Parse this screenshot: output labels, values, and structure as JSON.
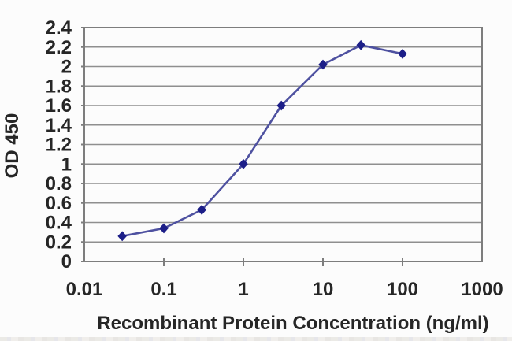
{
  "figure": {
    "background": "#fcfcfc"
  },
  "chart_data": {
    "type": "line",
    "title": "",
    "xlabel": "Recombinant Protein Concentration (ng/ml)",
    "ylabel": "OD 450",
    "x_scale": "log",
    "xlim": [
      0.01,
      1000
    ],
    "ylim": [
      0,
      2.4
    ],
    "grid": "horizontal",
    "legend": "none",
    "marker": "diamond",
    "x": [
      0.03,
      0.1,
      0.3,
      1,
      3,
      10,
      30,
      100
    ],
    "values": [
      0.26,
      0.34,
      0.53,
      1.0,
      1.6,
      2.02,
      2.22,
      2.13
    ],
    "x_ticks": [
      {
        "value": 0.01,
        "label": "0.01"
      },
      {
        "value": 0.1,
        "label": "0.1"
      },
      {
        "value": 1,
        "label": "1"
      },
      {
        "value": 10,
        "label": "10"
      },
      {
        "value": 100,
        "label": "100"
      },
      {
        "value": 1000,
        "label": "1000"
      }
    ],
    "y_ticks": [
      {
        "value": 0,
        "label": "0"
      },
      {
        "value": 0.2,
        "label": "0.2"
      },
      {
        "value": 0.4,
        "label": "0.4"
      },
      {
        "value": 0.6,
        "label": "0.6"
      },
      {
        "value": 0.8,
        "label": "0.8"
      },
      {
        "value": 1,
        "label": "1"
      },
      {
        "value": 1.2,
        "label": "1.2"
      },
      {
        "value": 1.4,
        "label": "1.4"
      },
      {
        "value": 1.6,
        "label": "1.6"
      },
      {
        "value": 1.8,
        "label": "1.8"
      },
      {
        "value": 2,
        "label": "2"
      },
      {
        "value": 2.2,
        "label": "2.2"
      },
      {
        "value": 2.4,
        "label": "2.4"
      }
    ],
    "colors": {
      "line": "#4e51a0",
      "marker": "#1c1e88",
      "grid": "#8f8f8f",
      "axis": "#7d7d7d",
      "text": "#262626"
    }
  }
}
